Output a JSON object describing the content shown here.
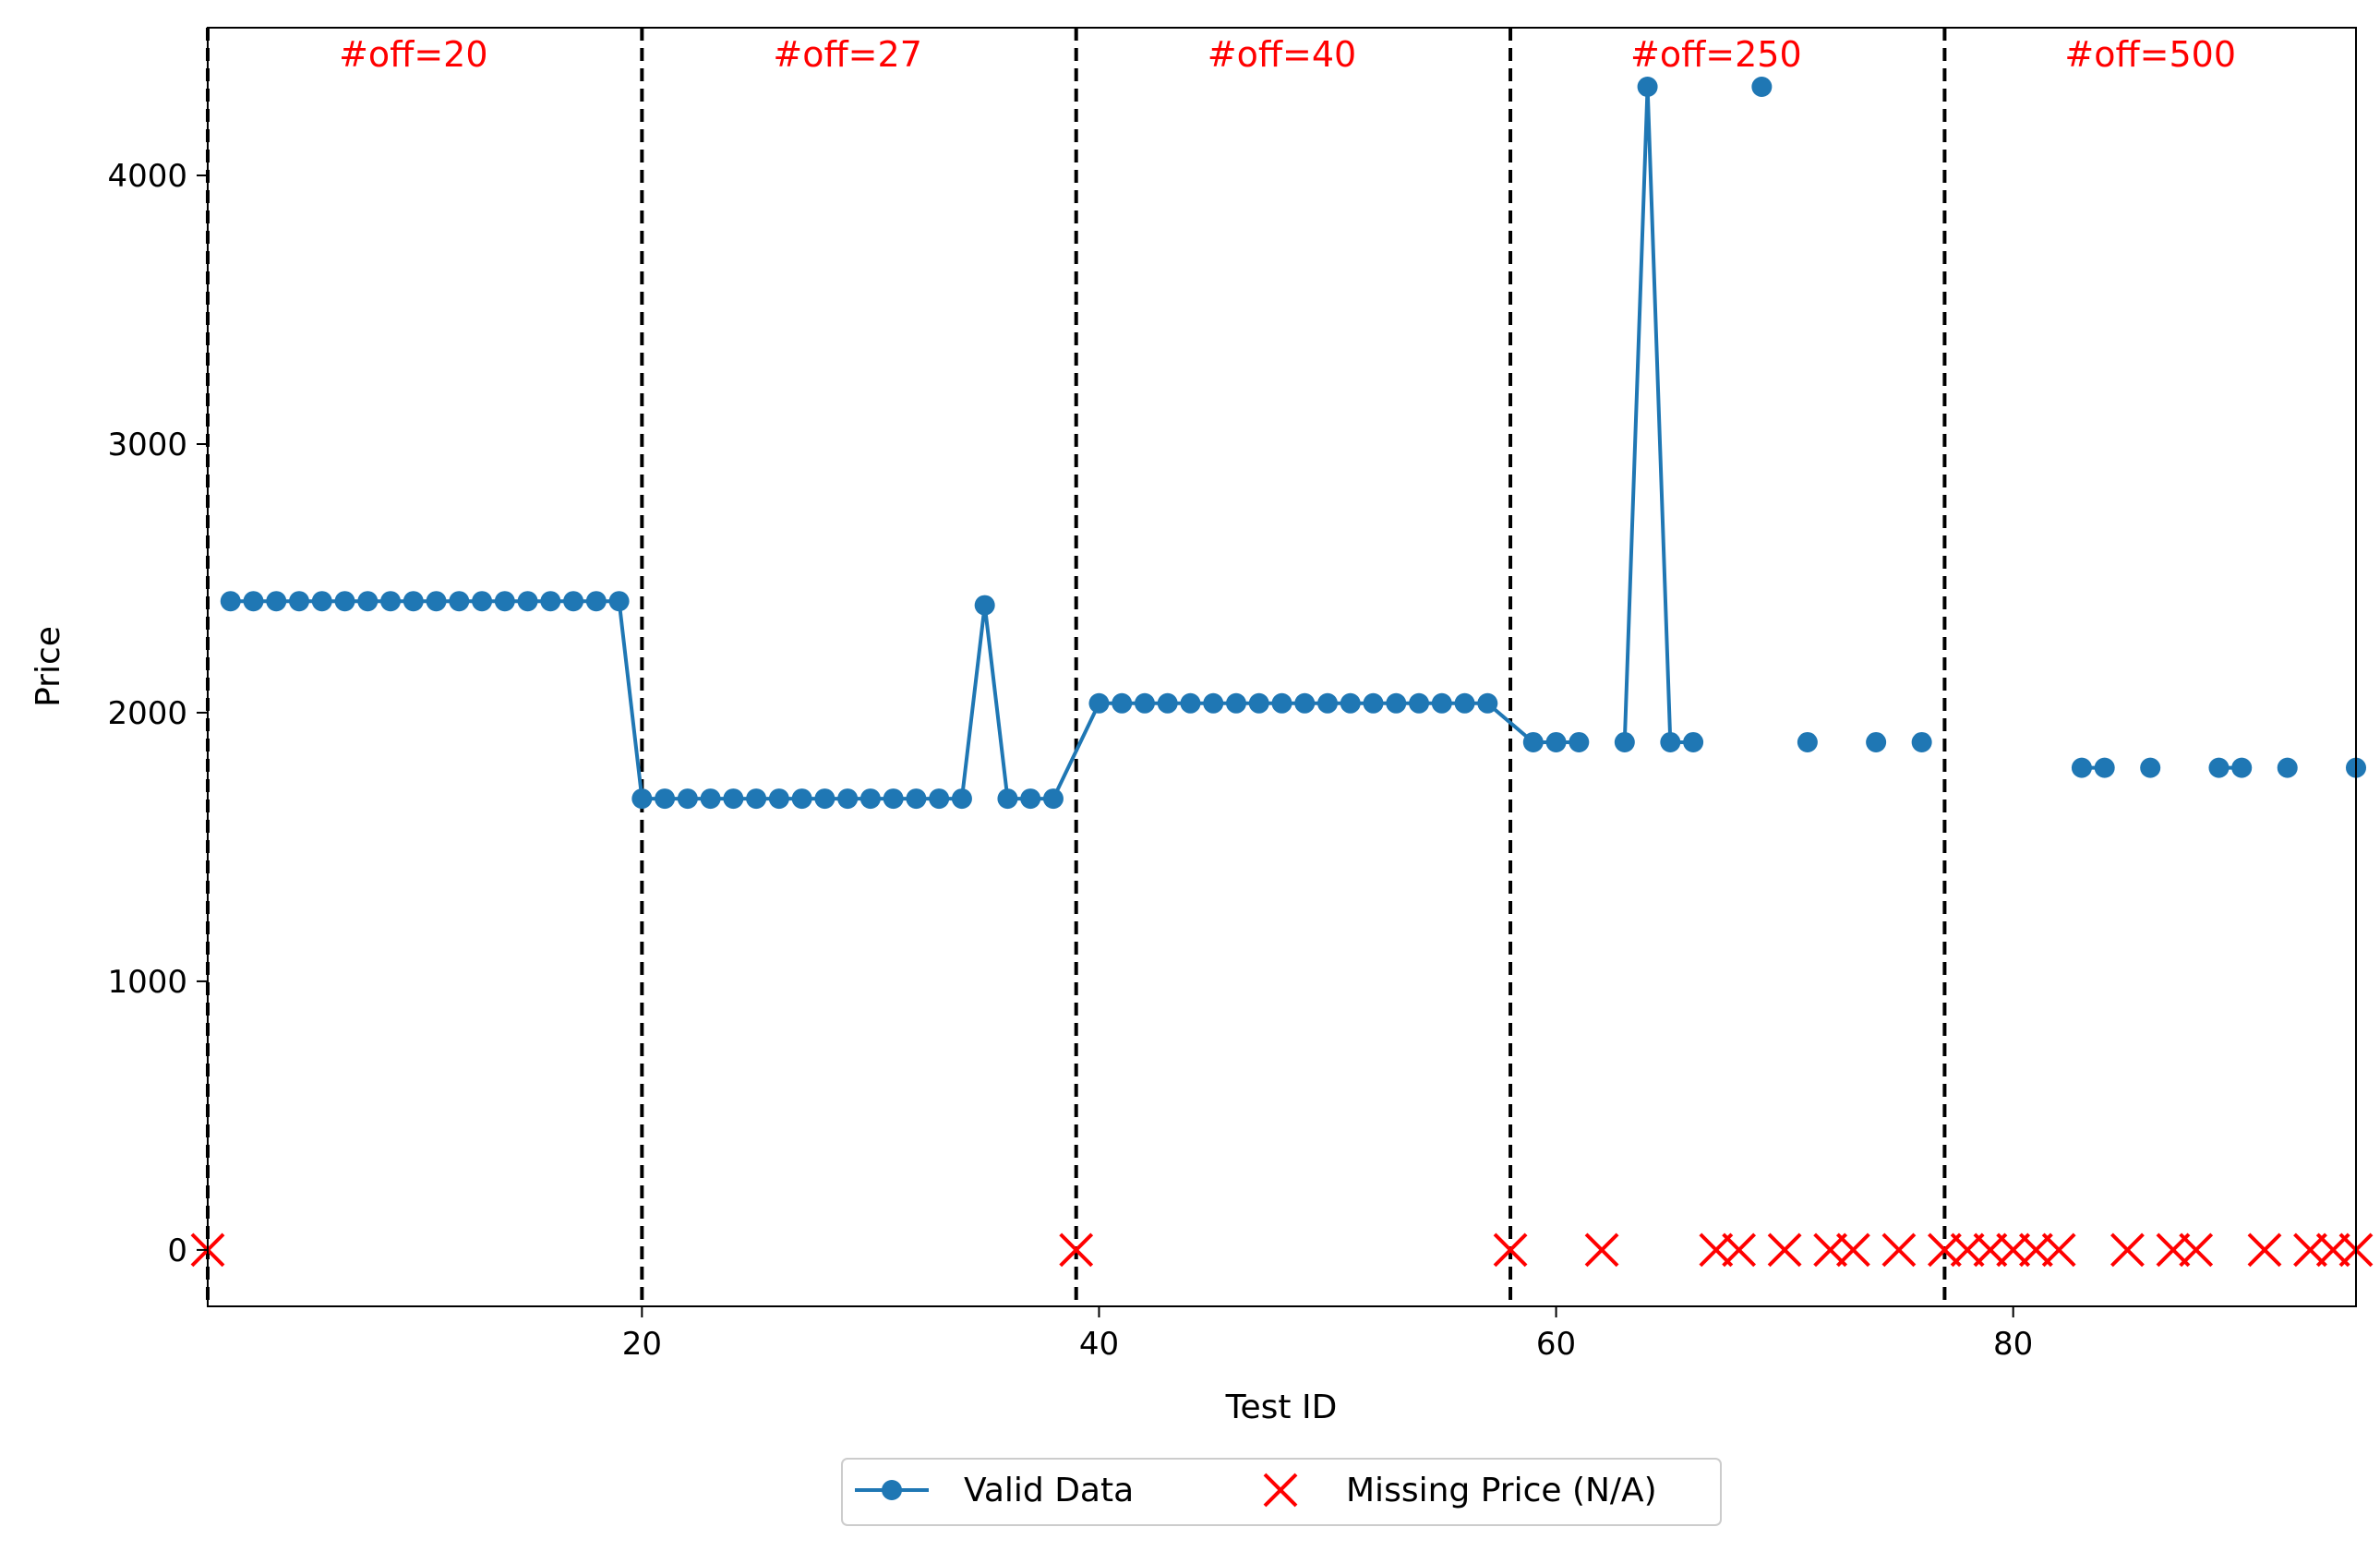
{
  "chart_data": {
    "type": "line",
    "title": "",
    "xlabel": "Test ID",
    "ylabel": "Price",
    "xlim": [
      1,
      95
    ],
    "ylim": [
      -210,
      4550
    ],
    "xticks": [
      20,
      40,
      60,
      80
    ],
    "yticks": [
      0,
      1000,
      2000,
      3000,
      4000
    ],
    "grid": false,
    "legend_position": "bottom-center",
    "colors": {
      "valid": "#1f77b4",
      "missing": "#ff0000",
      "divider": "#000000",
      "region_label": "#ff0000"
    },
    "dividers": [
      1,
      20,
      39,
      58,
      77
    ],
    "regions": [
      {
        "label": "#off=20",
        "x": 10
      },
      {
        "label": "#off=27",
        "x": 29
      },
      {
        "label": "#off=40",
        "x": 48
      },
      {
        "label": "#off=250",
        "x": 67
      },
      {
        "label": "#off=500",
        "x": 86
      }
    ],
    "series": [
      {
        "name": "Valid Data",
        "marker": "circle",
        "x": [
          2,
          3,
          4,
          5,
          6,
          7,
          8,
          9,
          10,
          11,
          12,
          13,
          14,
          15,
          16,
          17,
          18,
          19,
          20,
          21,
          22,
          23,
          24,
          25,
          26,
          27,
          28,
          29,
          30,
          31,
          32,
          33,
          34,
          35,
          36,
          37,
          38,
          40,
          41,
          42,
          43,
          44,
          45,
          46,
          47,
          48,
          49,
          50,
          51,
          52,
          53,
          54,
          55,
          56,
          57,
          59,
          60,
          61,
          null,
          63,
          64,
          65,
          66,
          null,
          69,
          null,
          71,
          null,
          74,
          null,
          76,
          null,
          83,
          84,
          null,
          86,
          null,
          89,
          90,
          null,
          92,
          null,
          95
        ],
        "y": [
          2415,
          2415,
          2415,
          2415,
          2415,
          2415,
          2415,
          2415,
          2415,
          2415,
          2415,
          2415,
          2415,
          2415,
          2415,
          2415,
          2415,
          2415,
          1680,
          1680,
          1680,
          1680,
          1680,
          1680,
          1680,
          1680,
          1680,
          1680,
          1680,
          1680,
          1680,
          1680,
          1680,
          2400,
          1680,
          1680,
          1680,
          2035,
          2035,
          2035,
          2035,
          2035,
          2035,
          2035,
          2035,
          2035,
          2035,
          2035,
          2035,
          2035,
          2035,
          2035,
          2035,
          2035,
          2035,
          1890,
          1890,
          1890,
          null,
          1890,
          4330,
          1890,
          1890,
          null,
          4330,
          null,
          1890,
          null,
          1890,
          null,
          1890,
          null,
          1795,
          1795,
          null,
          1795,
          null,
          1795,
          1795,
          null,
          1795,
          null,
          1795
        ]
      },
      {
        "name": "Missing Price (N/A)",
        "marker": "x",
        "x": [
          1,
          39,
          58,
          62,
          67,
          68,
          70,
          72,
          73,
          75,
          77,
          78,
          79,
          80,
          81,
          82,
          85,
          87,
          88,
          91,
          93,
          94,
          95
        ],
        "y": [
          0,
          0,
          0,
          0,
          0,
          0,
          0,
          0,
          0,
          0,
          0,
          0,
          0,
          0,
          0,
          0,
          0,
          0,
          0,
          0,
          0,
          0,
          0
        ]
      }
    ]
  }
}
